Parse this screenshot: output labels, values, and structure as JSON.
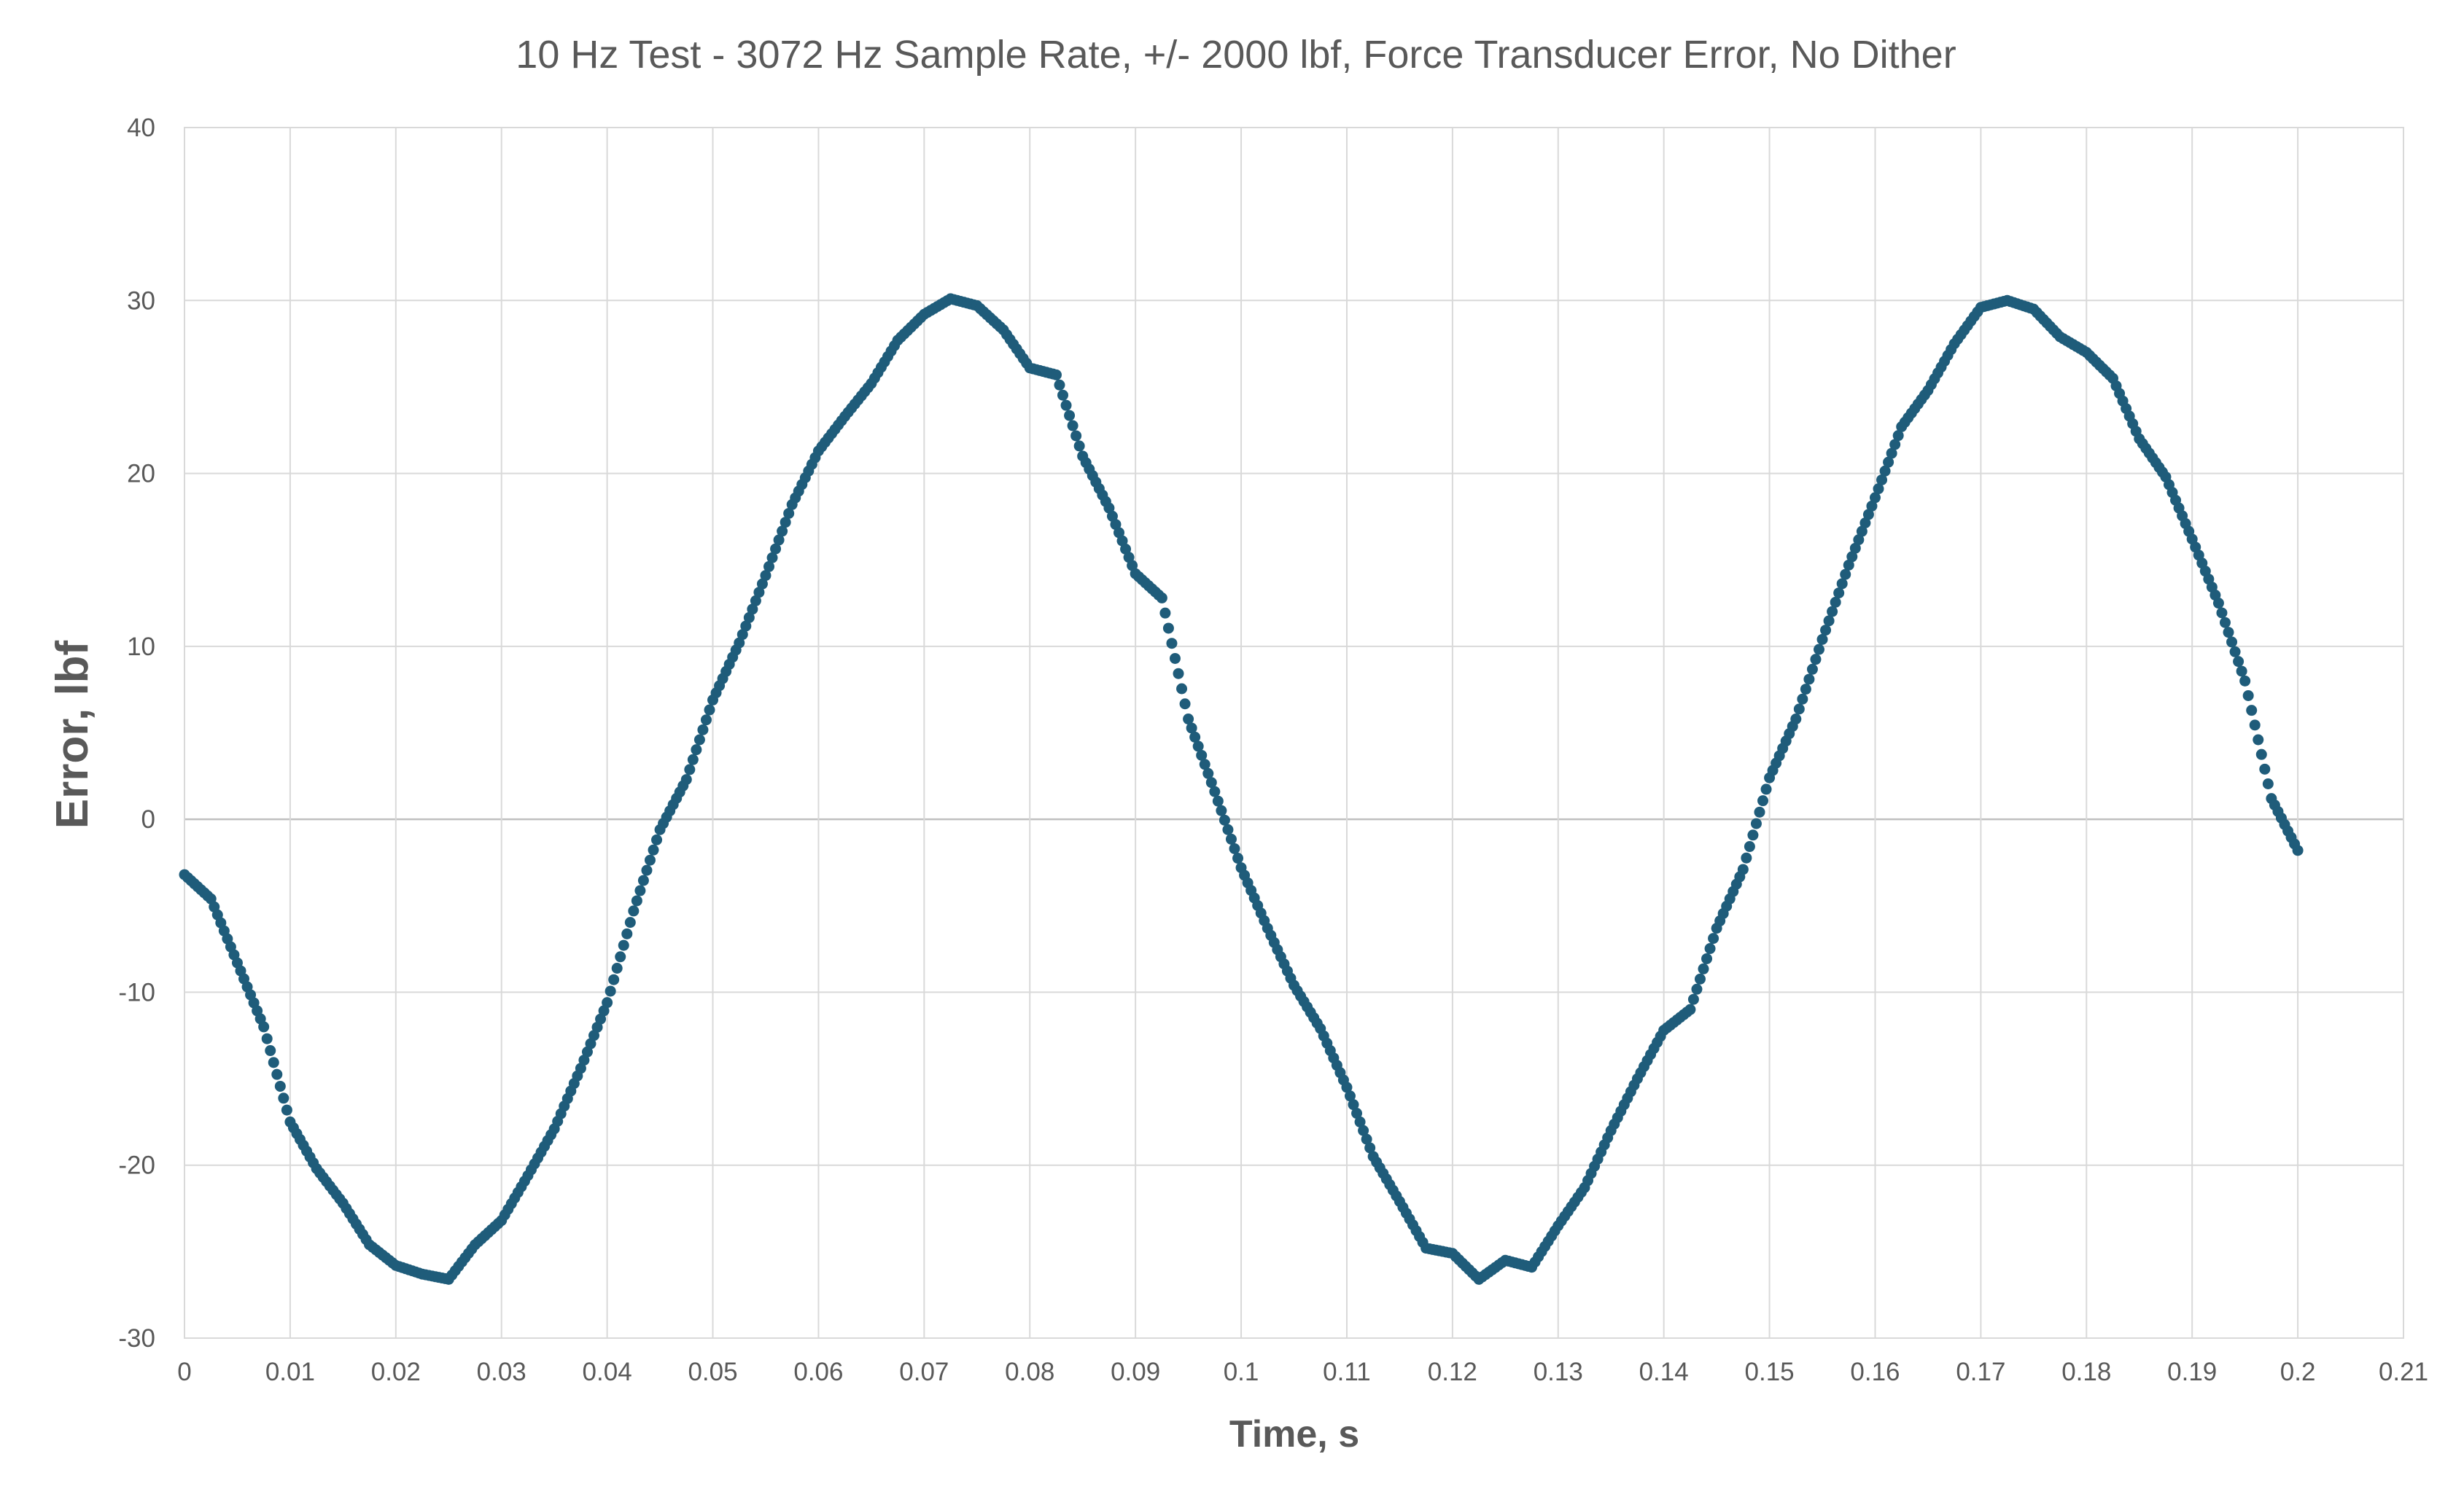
{
  "chart_data": {
    "type": "scatter",
    "title": "10 Hz Test - 3072 Hz Sample Rate, +/- 2000 lbf, Force Transducer Error, No Dither",
    "xlabel": "Time, s",
    "ylabel": "Error, lbf",
    "xlim": [
      0,
      0.21
    ],
    "ylim": [
      -30,
      40
    ],
    "x_ticks": [
      "0",
      "0.01",
      "0.02",
      "0.03",
      "0.04",
      "0.05",
      "0.06",
      "0.07",
      "0.08",
      "0.09",
      "0.1",
      "0.11",
      "0.12",
      "0.13",
      "0.14",
      "0.15",
      "0.16",
      "0.17",
      "0.18",
      "0.19",
      "0.2",
      "0.21"
    ],
    "y_ticks": [
      "40",
      "30",
      "20",
      "10",
      "0",
      "-10",
      "-20",
      "-30"
    ],
    "grid": true,
    "legend": "none",
    "marker_color": "#1f5c7a",
    "series": [
      {
        "x": [
          0,
          0.0025,
          0.005,
          0.0075,
          0.01,
          0.0125,
          0.015,
          0.0175,
          0.02,
          0.0225,
          0.025,
          0.0275,
          0.03,
          0.0325,
          0.035,
          0.0375,
          0.04,
          0.0425,
          0.045,
          0.0475,
          0.05,
          0.0525,
          0.055,
          0.0575,
          0.06,
          0.0625,
          0.065,
          0.0675,
          0.07,
          0.0725,
          0.075,
          0.0775,
          0.08,
          0.0825,
          0.085,
          0.0875,
          0.09,
          0.0925,
          0.095,
          0.0975,
          0.1,
          0.1025,
          0.105,
          0.1075,
          0.11,
          0.1125,
          0.115,
          0.1175,
          0.12,
          0.1225,
          0.125,
          0.1275,
          0.13,
          0.1325,
          0.135,
          0.1375,
          0.14,
          0.1425,
          0.145,
          0.1475,
          0.15,
          0.1525,
          0.155,
          0.1575,
          0.16,
          0.1625,
          0.165,
          0.1675,
          0.17,
          0.1725,
          0.175,
          0.1775,
          0.18,
          0.1825,
          0.185,
          0.1875,
          0.19,
          0.1925,
          0.195,
          0.1975,
          0.2
        ],
        "values": [
          -3.2,
          -4.6,
          -8.3,
          -12.0,
          -17.5,
          -20.2,
          -22.2,
          -24.6,
          -25.8,
          -26.3,
          -26.6,
          -24.6,
          -23.2,
          -20.6,
          -17.9,
          -14.4,
          -10.6,
          -5.3,
          -0.6,
          2.3,
          6.9,
          10.2,
          14.1,
          18.2,
          21.3,
          23.3,
          25.2,
          27.7,
          29.2,
          30.1,
          29.7,
          28.3,
          26.1,
          25.7,
          21.0,
          18.0,
          14.2,
          12.8,
          5.8,
          1.6,
          -2.8,
          -6.3,
          -9.6,
          -12.1,
          -15.5,
          -19.5,
          -22.1,
          -24.8,
          -25.1,
          -26.6,
          -25.5,
          -25.9,
          -23.5,
          -21.3,
          -18.0,
          -15.0,
          -12.2,
          -11.0,
          -6.3,
          -2.9,
          2.4,
          5.8,
          10.4,
          14.7,
          18.6,
          22.7,
          24.8,
          27.5,
          29.6,
          30.0,
          29.5,
          27.9,
          27.0,
          25.5,
          22.0,
          19.8,
          16.2,
          12.5,
          8.0,
          1.2,
          -1.8
        ]
      }
    ]
  }
}
